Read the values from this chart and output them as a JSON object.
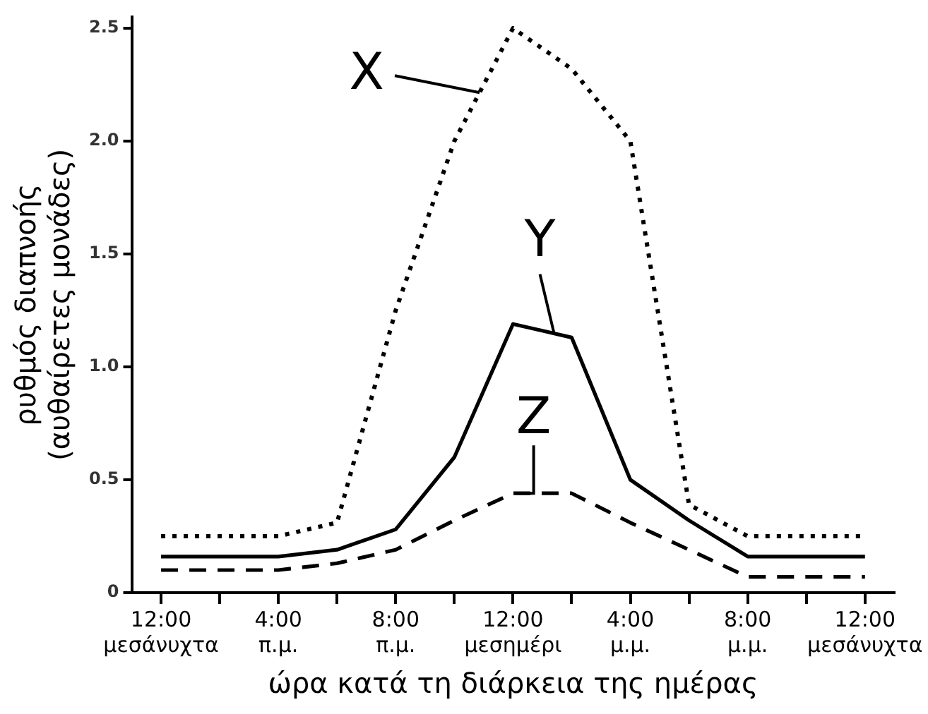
{
  "chart_data": {
    "type": "line",
    "xlabel": "ώρα κατά τη διάρκεια της ημέρας",
    "ylabel": "ρυθμός διαπνοής\n(αυθαίρετες μονάδες)",
    "categories": [
      "12:00\nμεσάνυχτα",
      null,
      "4:00\nπ.μ.",
      null,
      "8:00\nπ.μ.",
      null,
      "12:00\nμεσημέρι",
      null,
      "4:00\nμ.μ.",
      null,
      "8:00\nμ.μ.",
      null,
      "12:00\nμεσάνυχτα"
    ],
    "series": [
      {
        "color": "#000000",
        "line_style": "dotted",
        "values": [
          0.25,
          0.25,
          0.25,
          0.31,
          1.25,
          2.0,
          2.5,
          2.32,
          2.0,
          0.39,
          0.25,
          0.25,
          0.25
        ]
      },
      {
        "color": "#000000",
        "line_style": "solid",
        "values": [
          0.16,
          0.16,
          0.16,
          0.19,
          0.28,
          0.6,
          1.19,
          1.13,
          0.5,
          0.32,
          0.16,
          0.16,
          0.16
        ]
      },
      {
        "color": "#000000",
        "line_style": "dashed",
        "values": [
          0.1,
          0.1,
          0.1,
          0.13,
          0.19,
          0.32,
          0.44,
          0.44,
          0.31,
          0.19,
          0.07,
          0.07,
          0.07
        ]
      }
    ],
    "annotations": [
      "X",
      "Y",
      "Z"
    ],
    "ylim": [
      0,
      2.55
    ],
    "yticks": [
      0,
      0.5,
      {
        "value": 1,
        "label": "1.0"
      },
      1.5,
      {
        "value": 2,
        "label": "2.0"
      },
      2.5
    ],
    "grid": false,
    "legend": false,
    "marker": "none"
  }
}
